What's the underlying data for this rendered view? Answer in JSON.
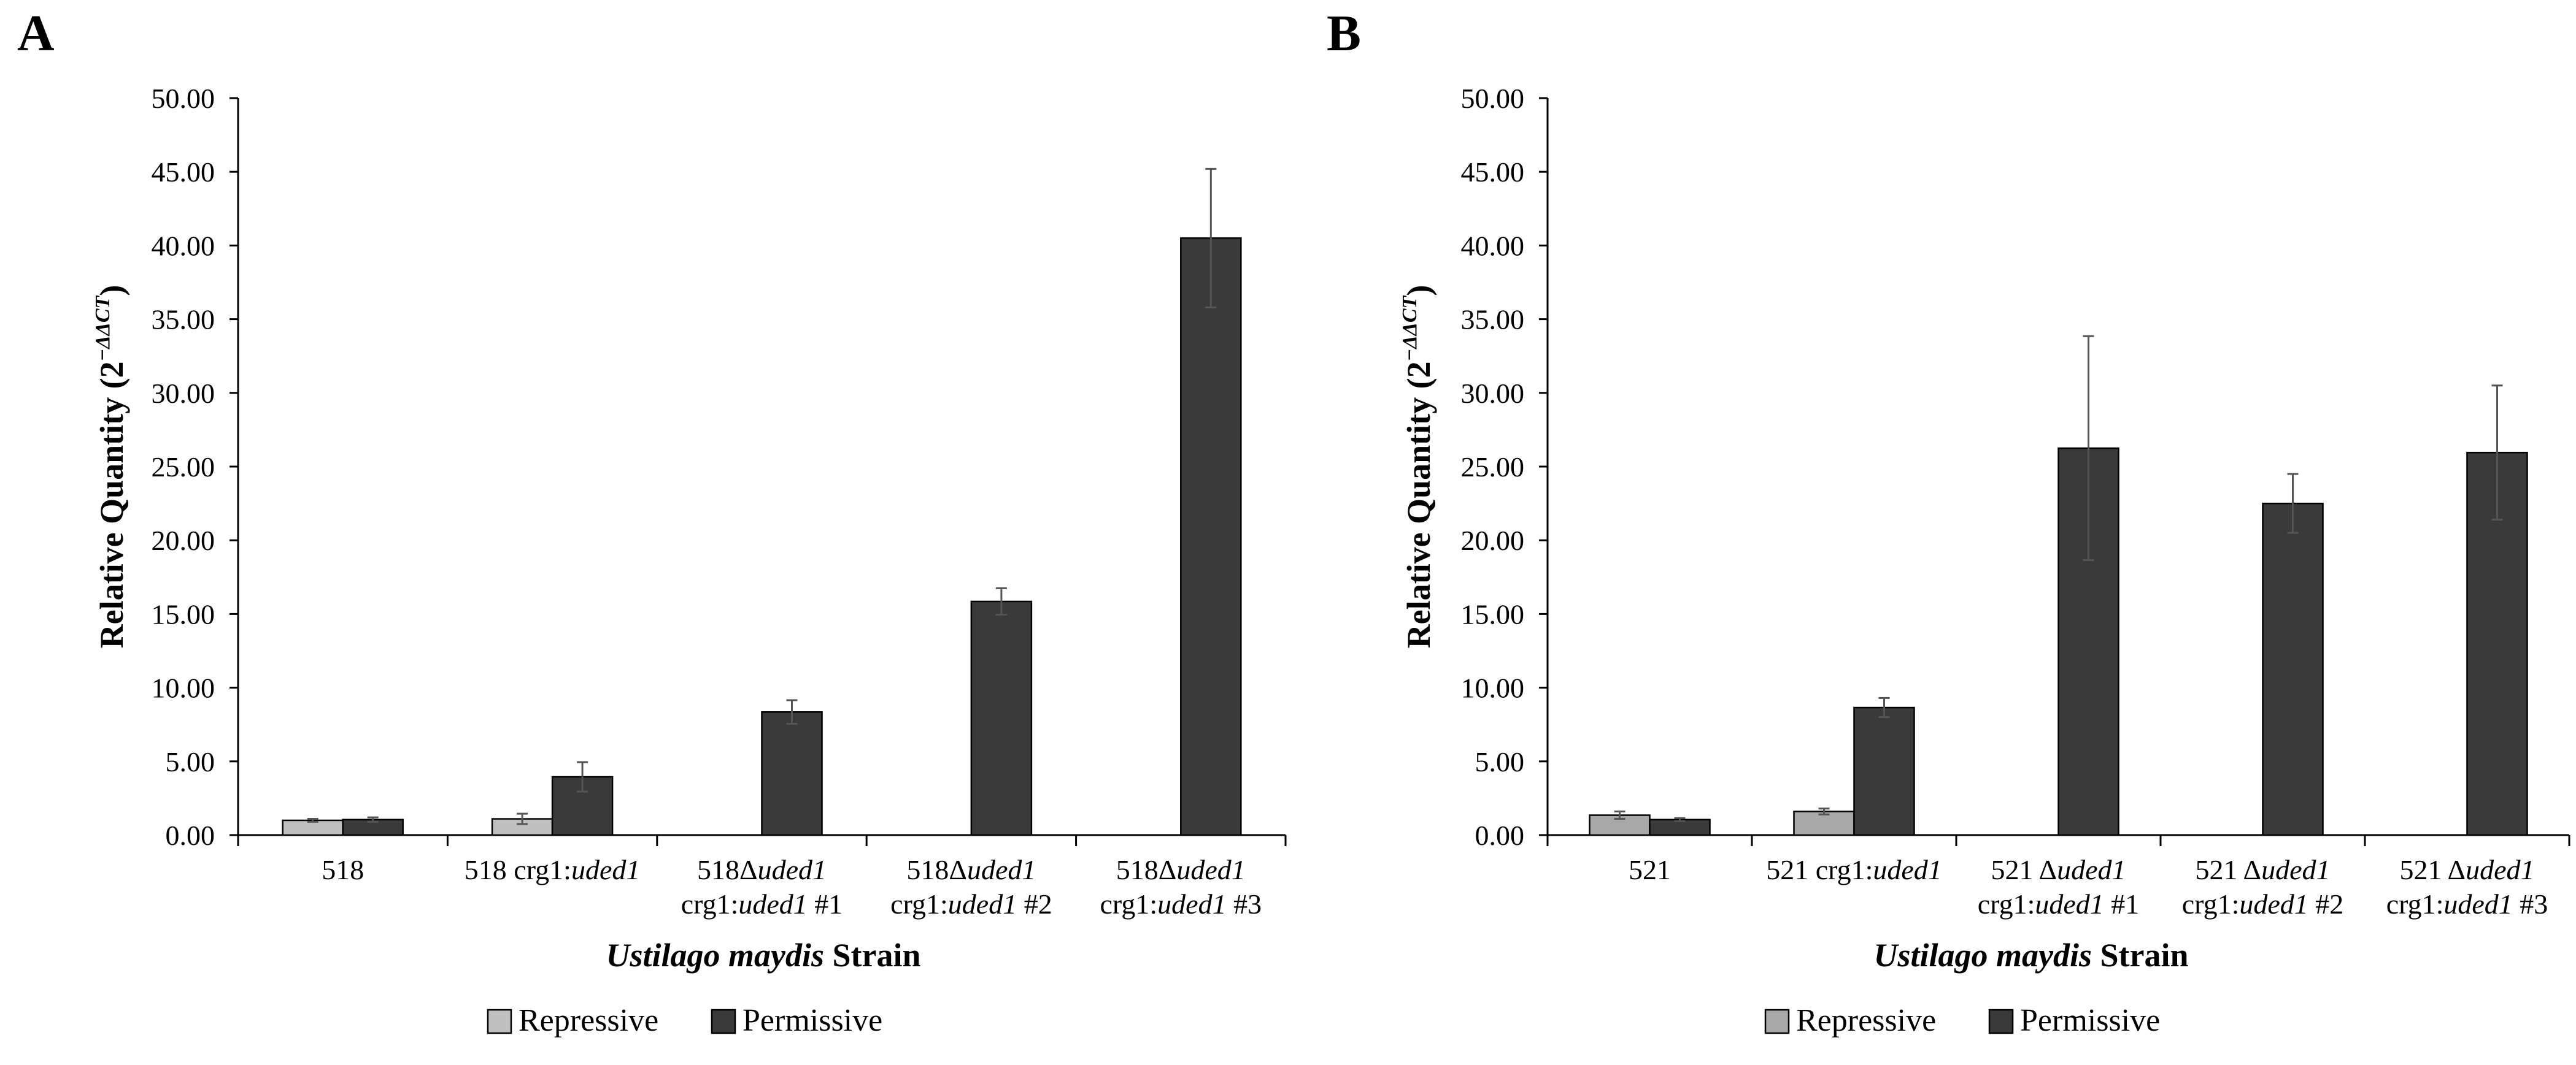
{
  "figure": {
    "panels": [
      {
        "label": "A",
        "ylabel": "Relative Quantity (2",
        "ylabel_exp": "−ΔΔCT",
        "xlabel_italic": "Ustilago maydis",
        "xlabel_rest": " Strain",
        "legend": [
          {
            "name": "Repressive",
            "color": "#c0c0c0"
          },
          {
            "name": "Permissive",
            "color": "#3a3a3a"
          }
        ],
        "yticks": [
          "0.00",
          "5.00",
          "10.00",
          "15.00",
          "20.00",
          "25.00",
          "30.00",
          "35.00",
          "40.00",
          "45.00",
          "50.00"
        ],
        "categories": [
          {
            "line1": [
              {
                "t": "518",
                "i": false
              }
            ],
            "line2": []
          },
          {
            "line1": [
              {
                "t": "518 crg1:",
                "i": false
              },
              {
                "t": "uded1",
                "i": true
              }
            ],
            "line2": []
          },
          {
            "line1": [
              {
                "t": "518Δ",
                "i": false
              },
              {
                "t": "uded1",
                "i": true
              }
            ],
            "line2": [
              {
                "t": "crg1:",
                "i": false
              },
              {
                "t": "uded1",
                "i": true
              },
              {
                "t": " #1",
                "i": false
              }
            ]
          },
          {
            "line1": [
              {
                "t": "518Δ",
                "i": false
              },
              {
                "t": "uded1",
                "i": true
              }
            ],
            "line2": [
              {
                "t": "crg1:",
                "i": false
              },
              {
                "t": "uded1",
                "i": true
              },
              {
                "t": " #2",
                "i": false
              }
            ]
          },
          {
            "line1": [
              {
                "t": "518Δ",
                "i": false
              },
              {
                "t": "uded1",
                "i": true
              }
            ],
            "line2": [
              {
                "t": "crg1:",
                "i": false
              },
              {
                "t": "uded1",
                "i": true
              },
              {
                "t": " #3",
                "i": false
              }
            ]
          }
        ]
      },
      {
        "label": "B",
        "ylabel": "Relative Quantity (2",
        "ylabel_exp": "−ΔΔCT",
        "xlabel_italic": "Ustilago maydis",
        "xlabel_rest": " Strain",
        "legend": [
          {
            "name": "Repressive",
            "color": "#a8a8a8"
          },
          {
            "name": "Permissive",
            "color": "#3a3a3a"
          }
        ],
        "yticks": [
          "0.00",
          "5.00",
          "10.00",
          "15.00",
          "20.00",
          "25.00",
          "30.00",
          "35.00",
          "40.00",
          "45.00",
          "50.00"
        ],
        "categories": [
          {
            "line1": [
              {
                "t": "521",
                "i": false
              }
            ],
            "line2": []
          },
          {
            "line1": [
              {
                "t": "521 crg1:",
                "i": false
              },
              {
                "t": "uded1",
                "i": true
              }
            ],
            "line2": []
          },
          {
            "line1": [
              {
                "t": "521 Δ",
                "i": false
              },
              {
                "t": "uded1",
                "i": true
              }
            ],
            "line2": [
              {
                "t": "crg1:",
                "i": false
              },
              {
                "t": "uded1",
                "i": true
              },
              {
                "t": " #1",
                "i": false
              }
            ]
          },
          {
            "line1": [
              {
                "t": "521 Δ",
                "i": false
              },
              {
                "t": "uded1",
                "i": true
              }
            ],
            "line2": [
              {
                "t": "crg1:",
                "i": false
              },
              {
                "t": "uded1",
                "i": true
              },
              {
                "t": " #2",
                "i": false
              }
            ]
          },
          {
            "line1": [
              {
                "t": "521 Δ",
                "i": false
              },
              {
                "t": "uded1",
                "i": true
              }
            ],
            "line2": [
              {
                "t": "crg1:",
                "i": false
              },
              {
                "t": "uded1",
                "i": true
              },
              {
                "t": " #3",
                "i": false
              }
            ]
          }
        ]
      }
    ]
  },
  "chart_data": [
    {
      "type": "bar",
      "panel": "A",
      "xlabel": "Ustilago maydis Strain",
      "ylabel": "Relative Quantity (2^−ΔΔCT)",
      "ylim": [
        0,
        50
      ],
      "ytick_step": 5,
      "grid": false,
      "legend_position": "bottom",
      "categories": [
        "518",
        "518 crg1:uded1",
        "518Δuded1 crg1:uded1 #1",
        "518Δuded1 crg1:uded1 #2",
        "518Δuded1 crg1:uded1 #3"
      ],
      "series": [
        {
          "name": "Repressive",
          "values": [
            1.0,
            1.1,
            null,
            null,
            null
          ],
          "errors": [
            0.1,
            0.35,
            null,
            null,
            null
          ]
        },
        {
          "name": "Permissive",
          "values": [
            1.05,
            3.95,
            8.35,
            15.85,
            40.5
          ],
          "errors": [
            0.15,
            1.0,
            0.8,
            0.9,
            4.7
          ]
        }
      ]
    },
    {
      "type": "bar",
      "panel": "B",
      "xlabel": "Ustilago maydis Strain",
      "ylabel": "Relative Quantity (2^−ΔΔCT)",
      "ylim": [
        0,
        50
      ],
      "ytick_step": 5,
      "grid": false,
      "legend_position": "bottom",
      "categories": [
        "521",
        "521 crg1:uded1",
        "521 Δuded1 crg1:uded1 #1",
        "521 Δuded1 crg1:uded1 #2",
        "521 Δuded1 crg1:uded1 #3"
      ],
      "series": [
        {
          "name": "Repressive",
          "values": [
            1.35,
            1.6,
            null,
            null,
            null
          ],
          "errors": [
            0.25,
            0.2,
            null,
            null,
            null
          ]
        },
        {
          "name": "Permissive",
          "values": [
            1.05,
            8.65,
            26.25,
            22.5,
            25.95
          ],
          "errors": [
            0.1,
            0.65,
            7.6,
            2.0,
            4.55
          ]
        }
      ]
    }
  ]
}
